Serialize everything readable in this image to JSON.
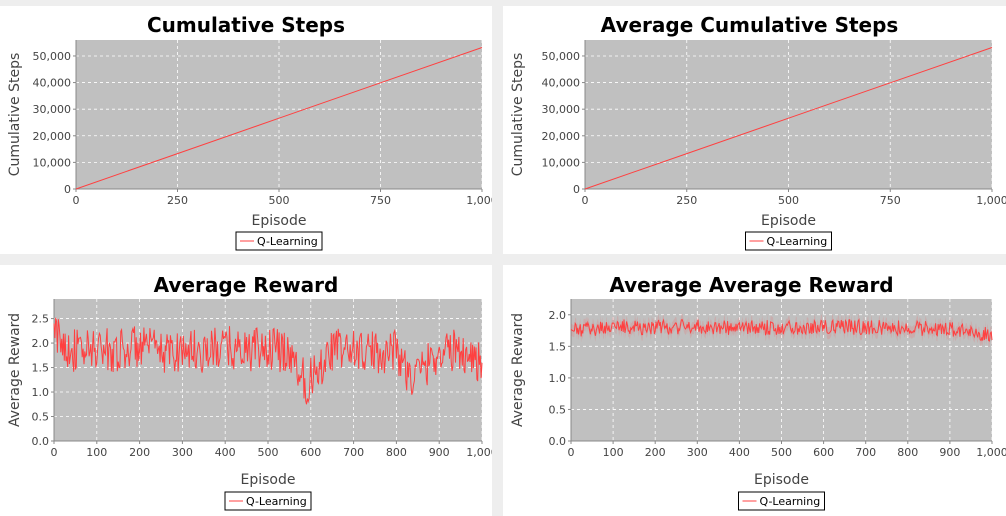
{
  "chart_data": [
    {
      "type": "line",
      "title": "Cumulative Steps",
      "xlabel": "Episode",
      "ylabel": "Cumulative Steps",
      "xlim": [
        0,
        1000
      ],
      "ylim": [
        0,
        56000
      ],
      "xticks": [
        0,
        250,
        500,
        750,
        1000
      ],
      "xtick_labels": [
        "0",
        "250",
        "500",
        "750",
        "1,000"
      ],
      "yticks": [
        0,
        10000,
        20000,
        30000,
        40000,
        50000
      ],
      "ytick_labels": [
        "0",
        "10,000",
        "20,000",
        "30,000",
        "40,000",
        "50,000"
      ],
      "grid": true,
      "legend": "bottom-center",
      "series": [
        {
          "name": "Q-Learning",
          "color": "#ff4040",
          "x": [
            0,
            250,
            500,
            750,
            1000
          ],
          "values": [
            0,
            13300,
            26600,
            39900,
            53200
          ]
        }
      ]
    },
    {
      "type": "line",
      "title": "Average Cumulative Steps",
      "xlabel": "Episode",
      "ylabel": "Cumulative Steps",
      "xlim": [
        0,
        1000
      ],
      "ylim": [
        0,
        56000
      ],
      "xticks": [
        0,
        250,
        500,
        750,
        1000
      ],
      "xtick_labels": [
        "0",
        "250",
        "500",
        "750",
        "1,000"
      ],
      "yticks": [
        0,
        10000,
        20000,
        30000,
        40000,
        50000
      ],
      "ytick_labels": [
        "0",
        "10,000",
        "20,000",
        "30,000",
        "40,000",
        "50,000"
      ],
      "grid": true,
      "legend": "bottom-center",
      "series": [
        {
          "name": "Q-Learning",
          "color": "#ff4040",
          "x": [
            0,
            250,
            500,
            750,
            1000
          ],
          "values": [
            0,
            13300,
            26600,
            39900,
            53200
          ]
        }
      ]
    },
    {
      "type": "line",
      "title": "Average Reward",
      "xlabel": "Episode",
      "ylabel": "Average Reward",
      "xlim": [
        0,
        1000
      ],
      "ylim": [
        0,
        2.9
      ],
      "xticks": [
        0,
        100,
        200,
        300,
        400,
        500,
        600,
        700,
        800,
        900,
        1000
      ],
      "xtick_labels": [
        "0",
        "100",
        "200",
        "300",
        "400",
        "500",
        "600",
        "700",
        "800",
        "900",
        "1,000"
      ],
      "yticks": [
        0,
        0.5,
        1.0,
        1.5,
        2.0,
        2.5
      ],
      "ytick_labels": [
        "0.0",
        "0.5",
        "1.0",
        "1.5",
        "2.0",
        "2.5"
      ],
      "grid": true,
      "legend": "bottom-center",
      "series": [
        {
          "name": "Q-Learning",
          "color": "#ff4040",
          "x": [
            0,
            50,
            100,
            150,
            200,
            250,
            300,
            350,
            400,
            450,
            500,
            550,
            590,
            650,
            700,
            750,
            800,
            835,
            900,
            950,
            1000
          ],
          "values": [
            2.4,
            1.8,
            1.9,
            1.85,
            2.0,
            1.75,
            1.9,
            1.8,
            1.95,
            1.85,
            1.9,
            1.8,
            0.75,
            1.9,
            1.85,
            1.75,
            1.9,
            0.85,
            1.8,
            1.85,
            1.45
          ],
          "mean": 1.85,
          "spread": 0.45
        }
      ]
    },
    {
      "type": "line",
      "title": "Average Average Reward",
      "xlabel": "Episode",
      "ylabel": "Average Reward",
      "xlim": [
        0,
        1000
      ],
      "ylim": [
        0,
        2.25
      ],
      "xticks": [
        0,
        100,
        200,
        300,
        400,
        500,
        600,
        700,
        800,
        900,
        1000
      ],
      "xtick_labels": [
        "0",
        "100",
        "200",
        "300",
        "400",
        "500",
        "600",
        "700",
        "800",
        "900",
        "1,000"
      ],
      "yticks": [
        0,
        0.5,
        1.0,
        1.5,
        2.0
      ],
      "ytick_labels": [
        "0.0",
        "0.5",
        "1.0",
        "1.5",
        "2.0"
      ],
      "grid": true,
      "legend": "bottom-center",
      "series": [
        {
          "name": "Q-Learning",
          "color": "#ff4040",
          "x": [
            0,
            100,
            200,
            300,
            400,
            500,
            600,
            700,
            800,
            900,
            1000
          ],
          "values": [
            1.7,
            1.82,
            1.8,
            1.83,
            1.78,
            1.8,
            1.82,
            1.8,
            1.78,
            1.75,
            1.6
          ],
          "mean": 1.8,
          "spread": 0.12
        }
      ]
    }
  ],
  "colors": {
    "plot_background": "#c0c0c0",
    "grid": "#ffffff",
    "axis": "#888888",
    "series": "#ff4040"
  }
}
